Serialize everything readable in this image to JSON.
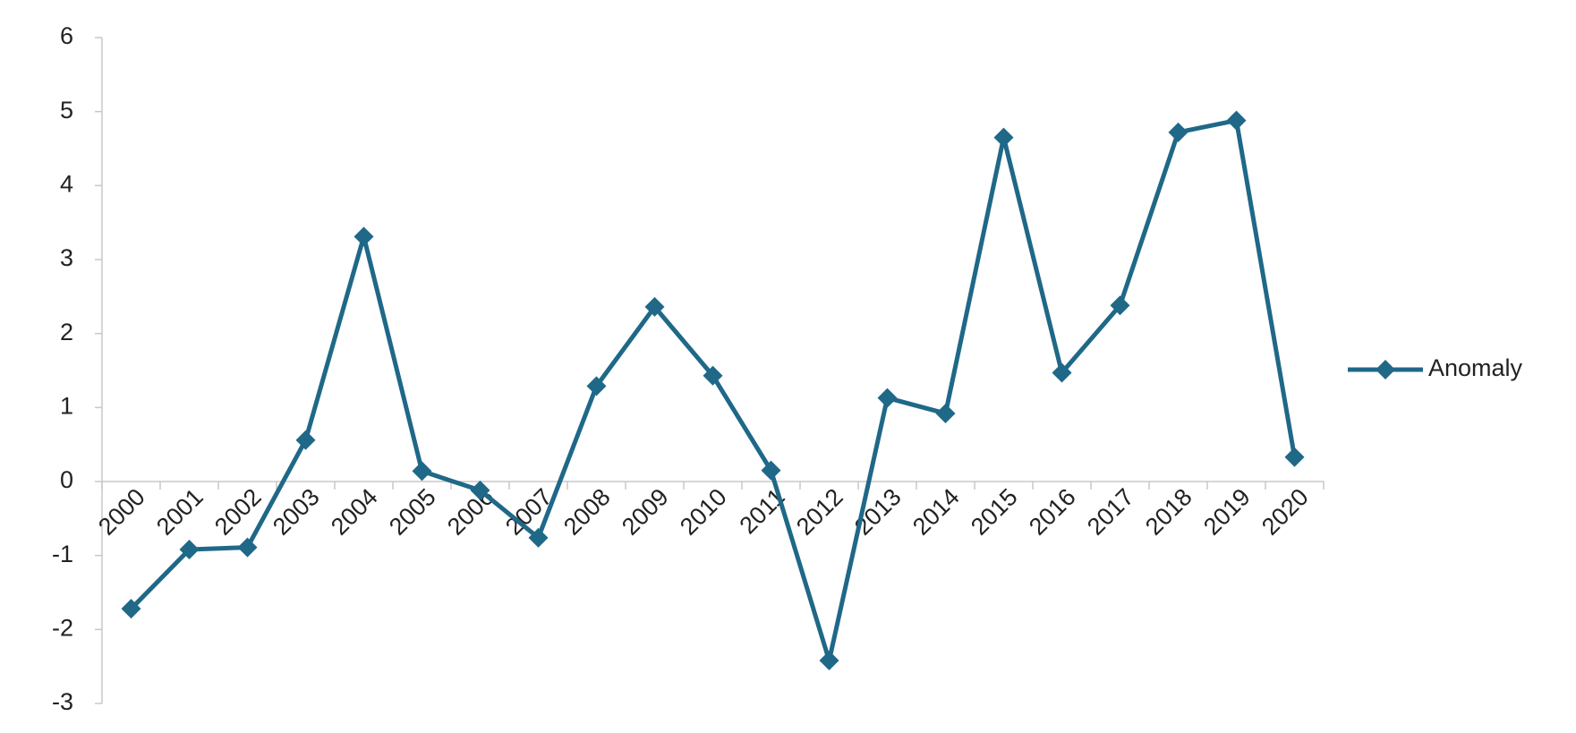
{
  "chart_data": {
    "type": "line",
    "categories": [
      "2000",
      "2001",
      "2002",
      "2003",
      "2004",
      "2005",
      "2006",
      "2007",
      "2008",
      "2009",
      "2010",
      "2011",
      "2012",
      "2013",
      "2014",
      "2015",
      "2016",
      "2017",
      "2018",
      "2019",
      "2020"
    ],
    "series": [
      {
        "name": "Anomaly",
        "color": "#1f6888",
        "values": [
          -1.72,
          -0.92,
          -0.89,
          0.56,
          3.31,
          0.14,
          -0.12,
          -0.76,
          1.29,
          2.36,
          1.43,
          0.15,
          -2.42,
          1.13,
          0.92,
          4.65,
          1.47,
          2.38,
          4.72,
          4.88,
          0.33
        ]
      }
    ],
    "ylim": [
      -3,
      6
    ],
    "yticks": [
      -3,
      -2,
      -1,
      0,
      1,
      2,
      3,
      4,
      5,
      6
    ],
    "grid": false,
    "legend": "right"
  }
}
